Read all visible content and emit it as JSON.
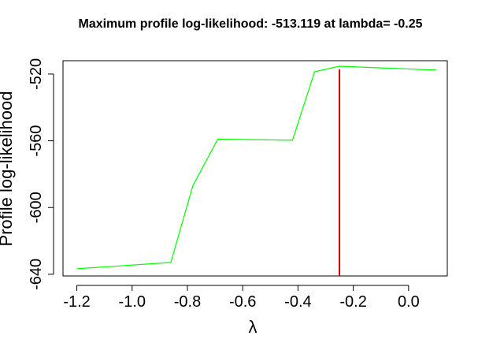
{
  "chart_data": {
    "type": "line",
    "title": "Maximum profile log-likelihood: -513.119 at lambda= -0.25",
    "xlabel": "λ",
    "ylabel": "Profile log-likelihood",
    "xlim": [
      -1.25,
      0.14
    ],
    "ylim": [
      -641,
      -512
    ],
    "x_ticks": [
      -1.2,
      -1.0,
      -0.8,
      -0.6,
      -0.4,
      -0.2,
      0.0
    ],
    "x_tick_labels": [
      "-1.2",
      "-1.0",
      "-0.8",
      "-0.6",
      "-0.4",
      "-0.2",
      "0.0"
    ],
    "y_ticks": [
      -520,
      -560,
      -600,
      -640
    ],
    "y_tick_labels": [
      "-520",
      "-560",
      "-600",
      "-640"
    ],
    "series": [
      {
        "color": "#00ff00",
        "x": [
          -1.2,
          -0.86,
          -0.78,
          -0.69,
          -0.42,
          -0.34,
          -0.25,
          0.1
        ],
        "y": [
          -636.7,
          -632.9,
          -586.8,
          -559.0,
          -559.7,
          -518.6,
          -515.3,
          -517.6
        ]
      }
    ],
    "vline": {
      "x": -0.25,
      "color": "#cc0000"
    },
    "grid": false,
    "legend": "none"
  }
}
